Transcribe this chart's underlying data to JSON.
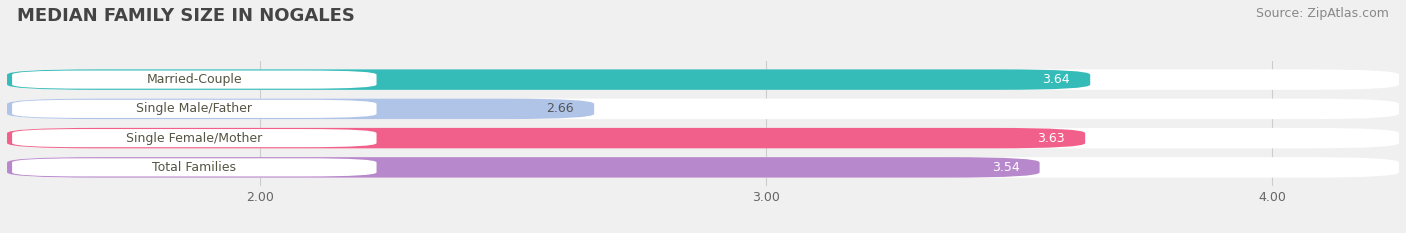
{
  "title": "MEDIAN FAMILY SIZE IN NOGALES",
  "source": "Source: ZipAtlas.com",
  "categories": [
    "Married-Couple",
    "Single Male/Father",
    "Single Female/Mother",
    "Total Families"
  ],
  "values": [
    3.64,
    2.66,
    3.63,
    3.54
  ],
  "bar_colors": [
    "#35bbb8",
    "#b0c4e8",
    "#f0608a",
    "#b888cc"
  ],
  "value_colors": [
    "white",
    "#555555",
    "white",
    "white"
  ],
  "label_text_color": "#555544",
  "x_min": 1.5,
  "x_max": 4.25,
  "xticks": [
    2.0,
    3.0,
    4.0
  ],
  "xtick_labels": [
    "2.00",
    "3.00",
    "4.00"
  ],
  "bar_height": 0.7,
  "background_color": "#f0f0f0",
  "bar_bg_color": "#ffffff",
  "title_fontsize": 13,
  "source_fontsize": 9,
  "label_fontsize": 9,
  "value_fontsize": 9
}
